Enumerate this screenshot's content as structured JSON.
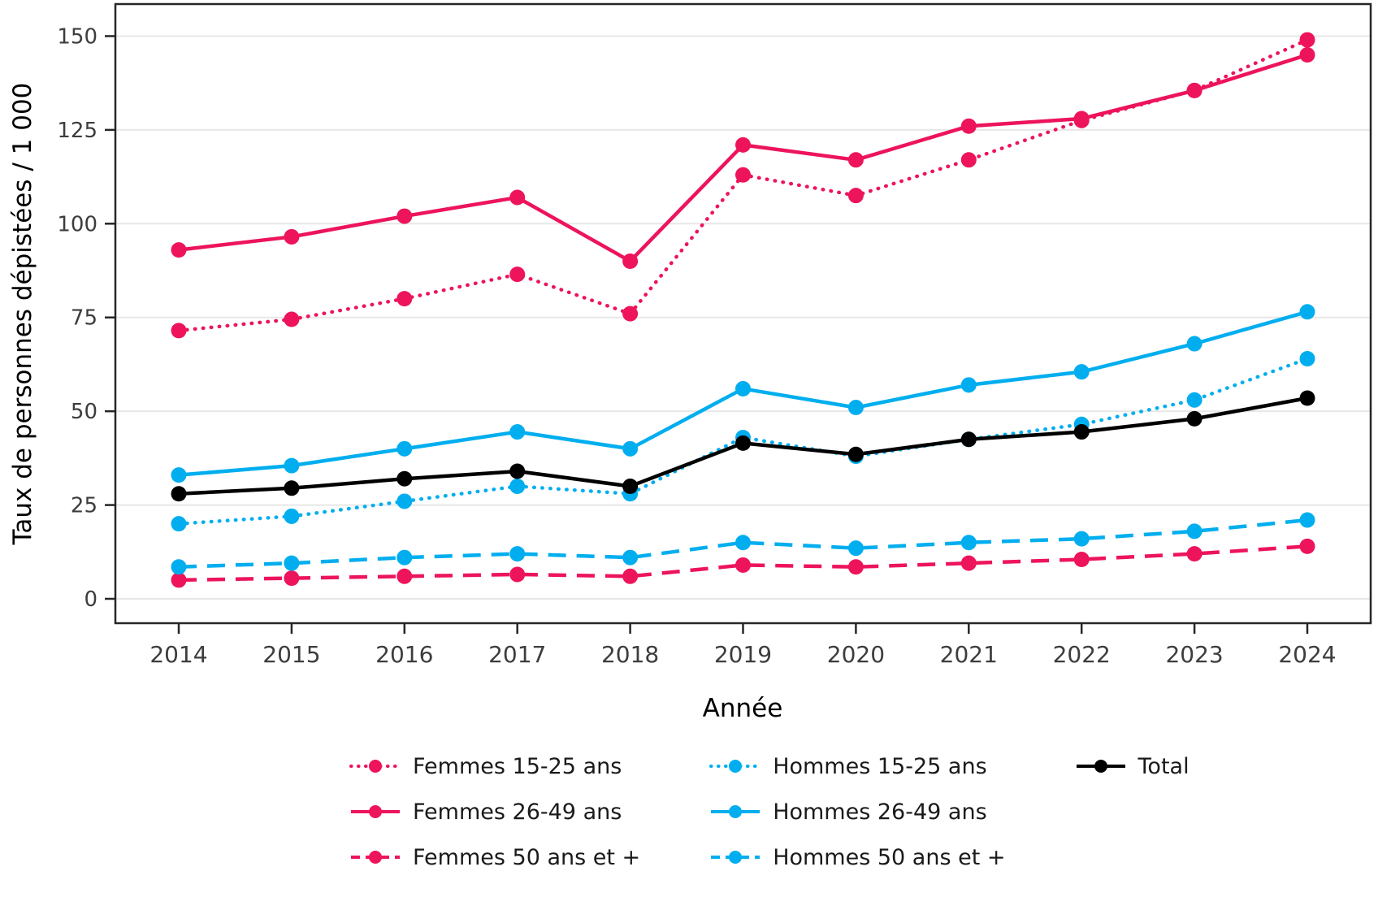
{
  "chart_data": {
    "type": "line",
    "title": "",
    "xlabel": "Année",
    "ylabel": "Taux de personnes dépistées / 1 000",
    "categories": [
      "2014",
      "2015",
      "2016",
      "2017",
      "2018",
      "2019",
      "2020",
      "2021",
      "2022",
      "2023",
      "2024"
    ],
    "yticks": [
      0,
      25,
      50,
      75,
      100,
      125,
      150
    ],
    "ylim": [
      -6,
      158
    ],
    "grid": "horizontal-only",
    "legend_position": "bottom",
    "background": "#ffffff",
    "colors": {
      "femmes": "#ED145B",
      "hommes": "#00AEEF",
      "total": "#000000"
    },
    "series": [
      {
        "name": "Femmes 15-25 ans",
        "color": "#ED145B",
        "style": "dotted",
        "values": [
          71.5,
          74.5,
          80,
          86.5,
          76,
          113,
          107.5,
          117,
          127.5,
          135.5,
          149
        ]
      },
      {
        "name": "Femmes 26-49 ans",
        "color": "#ED145B",
        "style": "solid",
        "values": [
          93,
          96.5,
          102,
          107,
          90,
          121,
          117,
          126,
          128,
          135.5,
          145
        ]
      },
      {
        "name": "Femmes 50 ans et +",
        "color": "#ED145B",
        "style": "dashed",
        "values": [
          5,
          5.5,
          6,
          6.5,
          6,
          9,
          8.5,
          9.5,
          10.5,
          12,
          14
        ]
      },
      {
        "name": "Hommes 15-25 ans",
        "color": "#00AEEF",
        "style": "dotted",
        "values": [
          20,
          22,
          26,
          30,
          28,
          43,
          38,
          42.5,
          46.5,
          53,
          64
        ]
      },
      {
        "name": "Hommes 26-49 ans",
        "color": "#00AEEF",
        "style": "solid",
        "values": [
          33,
          35.5,
          40,
          44.5,
          40,
          56,
          51,
          57,
          60.5,
          68,
          76.5
        ]
      },
      {
        "name": "Hommes 50 ans et +",
        "color": "#00AEEF",
        "style": "dashed",
        "values": [
          8.5,
          9.5,
          11,
          12,
          11,
          15,
          13.5,
          15,
          16,
          18,
          21
        ]
      },
      {
        "name": "Total",
        "color": "#000000",
        "style": "solid",
        "values": [
          28,
          29.5,
          32,
          34,
          30,
          41.5,
          38.5,
          42.5,
          44.5,
          48,
          53.5
        ]
      }
    ]
  }
}
